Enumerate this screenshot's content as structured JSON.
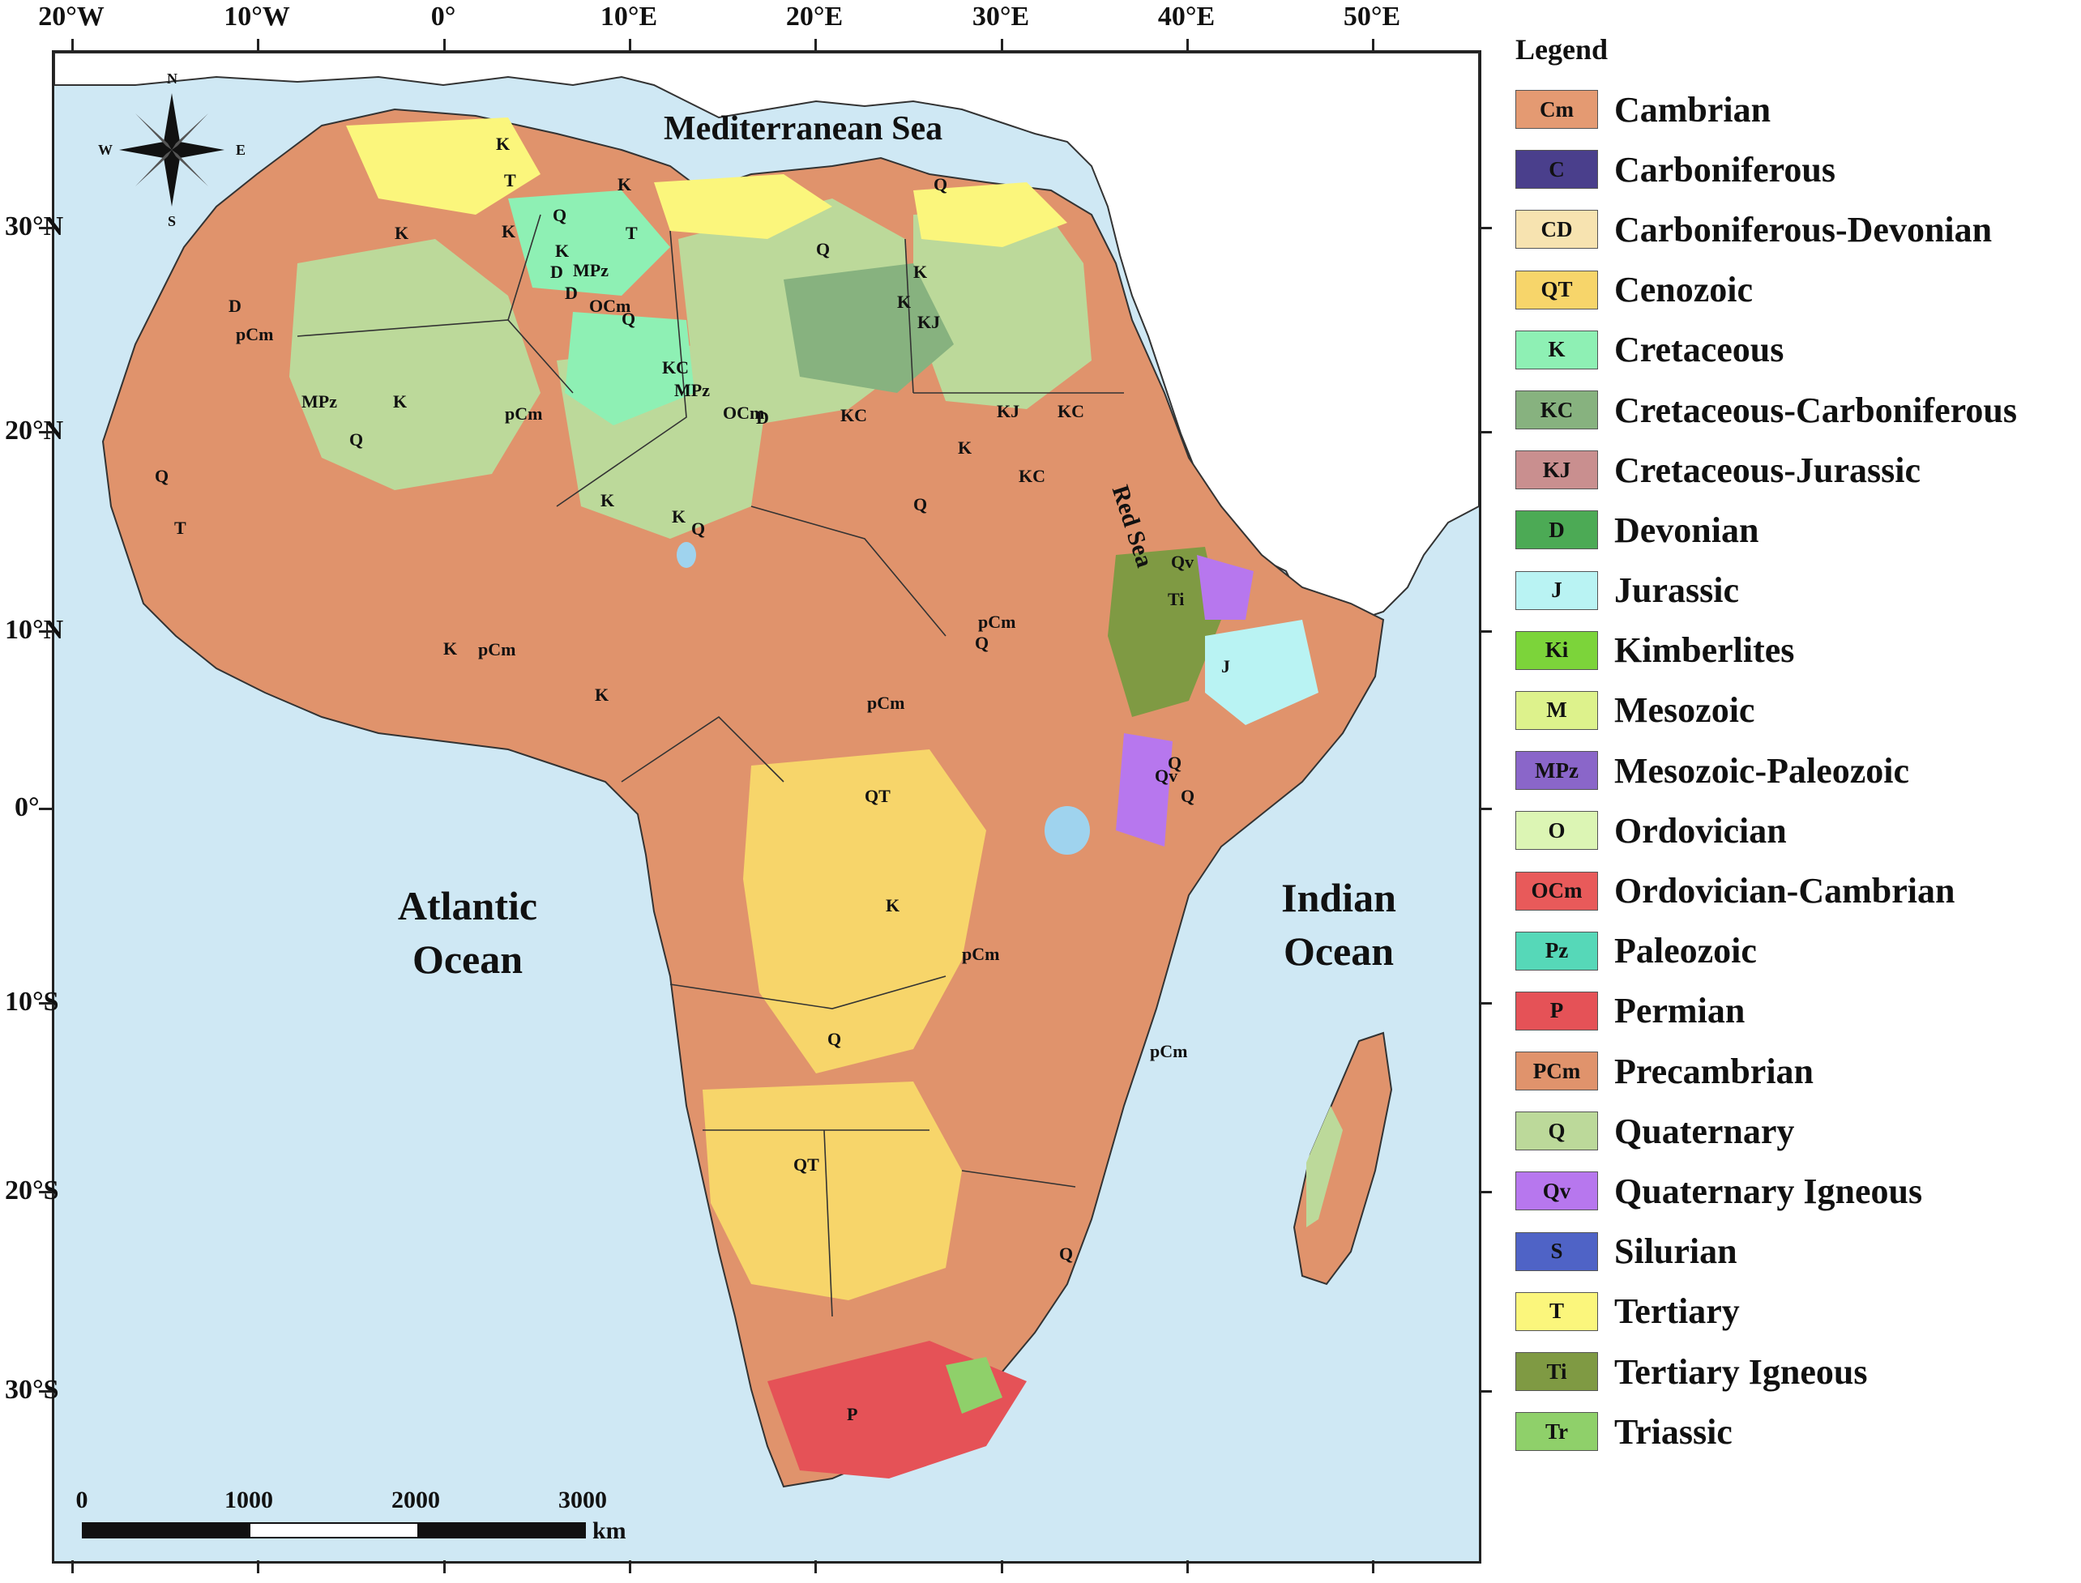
{
  "axes": {
    "longitude_labels": [
      "20°W",
      "10°W",
      "0°",
      "10°E",
      "20°E",
      "30°E",
      "40°E",
      "50°E"
    ],
    "latitude_labels": [
      "30°N",
      "20°N",
      "10°N",
      "0°",
      "10°S",
      "20°S",
      "30°S"
    ]
  },
  "water_labels": {
    "mediterranean": "Mediterranean Sea",
    "red_sea": "Red Sea",
    "atlantic_line1": "Atlantic",
    "atlantic_line2": "Ocean",
    "indian_line1": "Indian",
    "indian_line2": "Ocean"
  },
  "compass": {
    "n": "N",
    "s": "S",
    "e": "E",
    "w": "W"
  },
  "scale_bar": {
    "ticks": [
      "0",
      "1000",
      "2000",
      "3000"
    ],
    "unit": "km"
  },
  "unit_labels": [
    "K",
    "T",
    "Q",
    "K",
    "K",
    "K",
    "T",
    "Q",
    "Q",
    "K",
    "D",
    "MPz",
    "D",
    "OCm",
    "Q",
    "K",
    "KC",
    "MPz",
    "OCm",
    "D",
    "KC",
    "K",
    "KJ",
    "KJ",
    "KC",
    "K",
    "KC",
    "Q",
    "K",
    "D",
    "pCm",
    "MPz",
    "K",
    "Q",
    "pCm",
    "Q",
    "T",
    "Q",
    "K",
    "pCm",
    "pCm",
    "K",
    "K",
    "pCm",
    "Q",
    "Ti",
    "Qv",
    "J",
    "Q",
    "Qv",
    "Q",
    "QT",
    "K",
    "pCm",
    "pCm",
    "Q",
    "QT",
    "Q",
    "P"
  ],
  "legend": {
    "title": "Legend",
    "items": [
      {
        "code": "Cm",
        "label": "Cambrian",
        "color": "#e49a72"
      },
      {
        "code": "C",
        "label": "Carboniferous",
        "color": "#4a3f8c"
      },
      {
        "code": "CD",
        "label": "Carboniferous-Devonian",
        "color": "#f7e3b0"
      },
      {
        "code": "QT",
        "label": "Cenozoic",
        "color": "#f7d56a"
      },
      {
        "code": "K",
        "label": "Cretaceous",
        "color": "#8ef0b4"
      },
      {
        "code": "KC",
        "label": "Cretaceous-Carboniferous",
        "color": "#87b27f"
      },
      {
        "code": "KJ",
        "label": "Cretaceous-Jurassic",
        "color": "#c98f8f"
      },
      {
        "code": "D",
        "label": "Devonian",
        "color": "#4caa55"
      },
      {
        "code": "J",
        "label": "Jurassic",
        "color": "#b9f3f3"
      },
      {
        "code": "Ki",
        "label": "Kimberlites",
        "color": "#7cd43a"
      },
      {
        "code": "M",
        "label": "Mesozoic",
        "color": "#ddf28c"
      },
      {
        "code": "MPz",
        "label": "Mesozoic-Paleozoic",
        "color": "#8a66c9"
      },
      {
        "code": "O",
        "label": "Ordovician",
        "color": "#dcf5b4"
      },
      {
        "code": "OCm",
        "label": "Ordovician-Cambrian",
        "color": "#e85a5a"
      },
      {
        "code": "Pz",
        "label": "Paleozoic",
        "color": "#56d8b8"
      },
      {
        "code": "P",
        "label": "Permian",
        "color": "#e55257"
      },
      {
        "code": "PCm",
        "label": "Precambrian",
        "color": "#e0936c"
      },
      {
        "code": "Q",
        "label": "Quaternary",
        "color": "#bcd99a"
      },
      {
        "code": "Qv",
        "label": "Quaternary Igneous",
        "color": "#b777ee"
      },
      {
        "code": "S",
        "label": "Silurian",
        "color": "#4f63c6"
      },
      {
        "code": "T",
        "label": "Tertiary",
        "color": "#fbf67c"
      },
      {
        "code": "Ti",
        "label": "Tertiary Igneous",
        "color": "#7f9a43"
      },
      {
        "code": "Tr",
        "label": "Triassic",
        "color": "#8fd06a"
      }
    ]
  }
}
